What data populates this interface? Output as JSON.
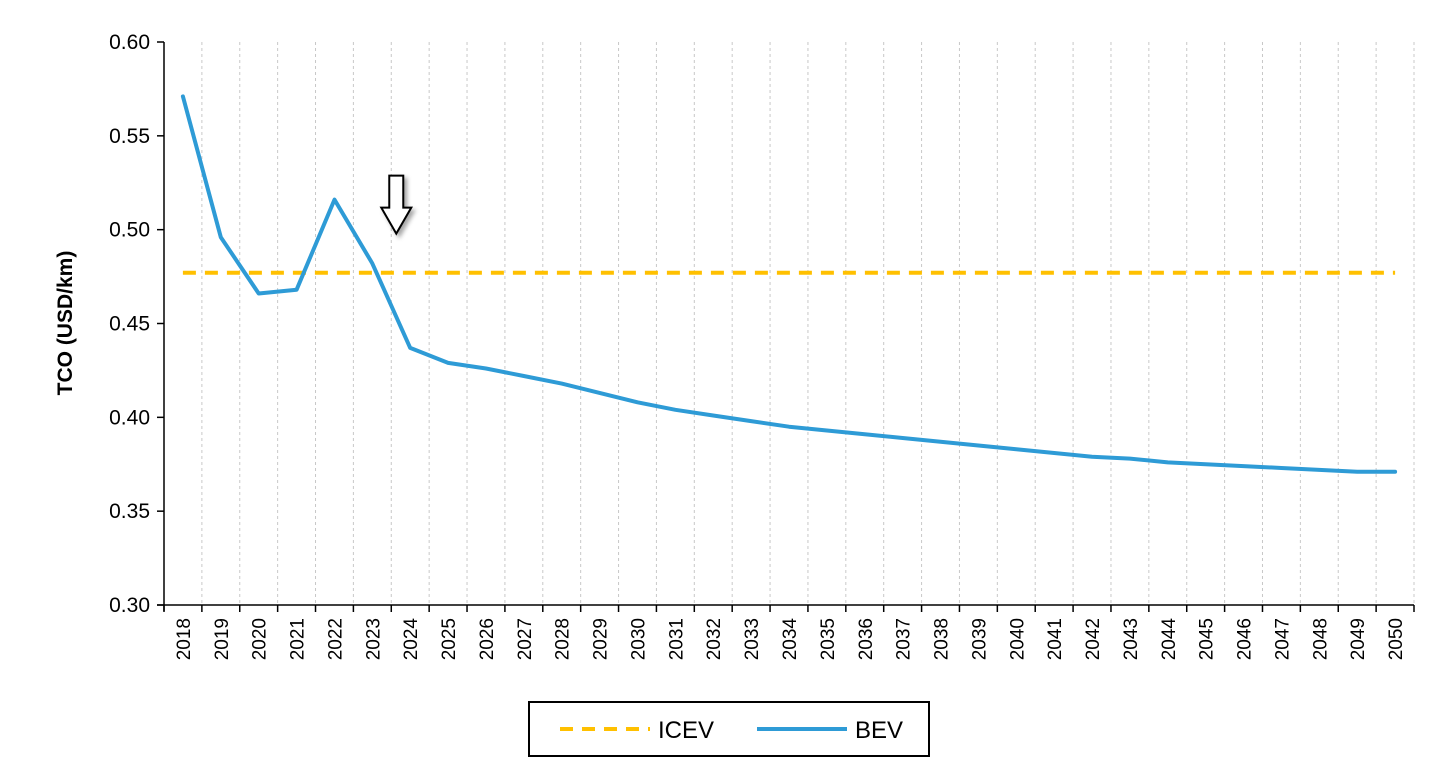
{
  "chart_data": {
    "type": "line",
    "title": "",
    "xlabel": "",
    "ylabel": "TCO (USD/km)",
    "x": [
      "2018",
      "2019",
      "2020",
      "2021",
      "2022",
      "2023",
      "2024",
      "2025",
      "2026",
      "2027",
      "2028",
      "2029",
      "2030",
      "2031",
      "2032",
      "2033",
      "2034",
      "2035",
      "2036",
      "2037",
      "2038",
      "2039",
      "2040",
      "2041",
      "2042",
      "2043",
      "2044",
      "2045",
      "2046",
      "2047",
      "2048",
      "2049",
      "2050"
    ],
    "ylim": [
      0.3,
      0.6
    ],
    "yticks": [
      "0.30",
      "0.35",
      "0.40",
      "0.45",
      "0.50",
      "0.55",
      "0.60"
    ],
    "grid": "vertical dashed",
    "legend_position": "bottom",
    "series": [
      {
        "name": "ICEV",
        "color": "#FFC000",
        "style": "dashed",
        "values": [
          0.477,
          0.477,
          0.477,
          0.477,
          0.477,
          0.477,
          0.477,
          0.477,
          0.477,
          0.477,
          0.477,
          0.477,
          0.477,
          0.477,
          0.477,
          0.477,
          0.477,
          0.477,
          0.477,
          0.477,
          0.477,
          0.477,
          0.477,
          0.477,
          0.477,
          0.477,
          0.477,
          0.477,
          0.477,
          0.477,
          0.477,
          0.477,
          0.477
        ]
      },
      {
        "name": "BEV",
        "color": "#2E9BD6",
        "style": "solid",
        "values": [
          0.571,
          0.496,
          0.466,
          0.468,
          0.516,
          0.482,
          0.437,
          0.429,
          0.426,
          0.422,
          0.418,
          0.413,
          0.408,
          0.404,
          0.401,
          0.398,
          0.395,
          0.393,
          0.391,
          0.389,
          0.387,
          0.385,
          0.383,
          0.381,
          0.379,
          0.378,
          0.376,
          0.375,
          0.374,
          0.373,
          0.372,
          0.371,
          0.371
        ]
      }
    ],
    "annotations": [
      {
        "type": "down-arrow",
        "x": "2023",
        "y": 0.5
      }
    ]
  }
}
